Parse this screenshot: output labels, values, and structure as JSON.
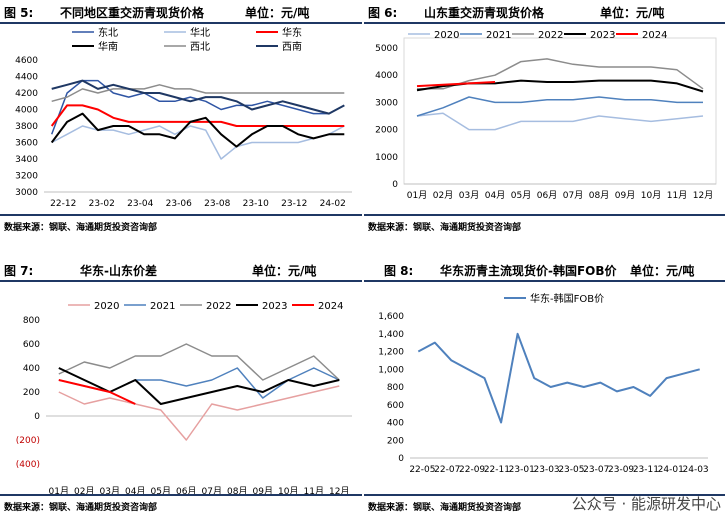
{
  "panels": [
    {
      "fig": "图 5:",
      "name": "不同地区重交沥青现货价格",
      "unit": "单位：元/吨",
      "source": "数据来源：钢联、海通期货投资咨询部"
    },
    {
      "fig": "图 6:",
      "name": "山东重交沥青现货价格",
      "unit": "单位：元/吨",
      "source": "数据来源：钢联、海通期货投资咨询部"
    },
    {
      "fig": "图 7:",
      "name": "华东-山东价差",
      "unit": "单位：元/吨",
      "source": "数据来源：钢联、海通期货投资咨询部"
    },
    {
      "fig": "图 8:",
      "name": "华东沥青主流现货价-韩国FOB价",
      "unit": "单位：元/吨",
      "source": "数据来源：钢联、海通期货投资咨询部"
    }
  ],
  "watermark": "公众号 · 能源研发中心",
  "chart_data": [
    {
      "type": "line",
      "xlabels": [
        "22-12",
        "23-02",
        "23-04",
        "23-06",
        "23-08",
        "23-10",
        "23-12",
        "24-02"
      ],
      "ylim": [
        3000,
        4600
      ],
      "yticks": [
        "3000",
        "3200",
        "3400",
        "3600",
        "3800",
        "4000",
        "4200",
        "4400",
        "4600"
      ],
      "series": [
        {
          "name": "东北",
          "color": "#2f55a4",
          "width": 1.5,
          "values": [
            3700,
            4200,
            4350,
            4350,
            4200,
            4150,
            4200,
            4100,
            4100,
            4150,
            4100,
            4000,
            4050,
            4050,
            4100,
            4050,
            4000,
            3950,
            3950,
            4050
          ]
        },
        {
          "name": "华北",
          "color": "#a6bde0",
          "width": 1.5,
          "values": [
            3600,
            3700,
            3800,
            3750,
            3750,
            3700,
            3750,
            3800,
            3700,
            3800,
            3750,
            3400,
            3550,
            3600,
            3600,
            3600,
            3600,
            3650,
            3700,
            3800
          ]
        },
        {
          "name": "华东",
          "color": "#ff0000",
          "width": 2,
          "values": [
            3800,
            4050,
            4050,
            4000,
            3900,
            3850,
            3850,
            3850,
            3850,
            3850,
            3850,
            3850,
            3800,
            3800,
            3800,
            3800,
            3800,
            3800,
            3800,
            3800
          ]
        },
        {
          "name": "华南",
          "color": "#000000",
          "width": 2,
          "values": [
            3600,
            3850,
            3950,
            3750,
            3800,
            3800,
            3700,
            3700,
            3650,
            3850,
            3900,
            3700,
            3550,
            3700,
            3800,
            3800,
            3700,
            3650,
            3700,
            3700
          ]
        },
        {
          "name": "西北",
          "color": "#8c8c8c",
          "width": 1.5,
          "values": [
            4100,
            4150,
            4250,
            4200,
            4250,
            4250,
            4250,
            4300,
            4250,
            4250,
            4200,
            4200,
            4200,
            4200,
            4200,
            4200,
            4200,
            4200,
            4200,
            4200
          ]
        },
        {
          "name": "西南",
          "color": "#1f3864",
          "width": 2,
          "values": [
            4250,
            4300,
            4350,
            4250,
            4300,
            4250,
            4200,
            4200,
            4150,
            4100,
            4150,
            4150,
            4100,
            4000,
            4050,
            4100,
            4050,
            4000,
            3950,
            4050
          ]
        }
      ]
    },
    {
      "type": "line",
      "xlabels": [
        "01月",
        "02月",
        "03月",
        "04月",
        "05月",
        "06月",
        "07月",
        "08月",
        "09月",
        "10月",
        "11月",
        "12月"
      ],
      "ylim": [
        0,
        5000
      ],
      "yticks": [
        "0",
        "1000",
        "2000",
        "3000",
        "4000",
        "5000"
      ],
      "series": [
        {
          "name": "2020",
          "color": "#a6bde0",
          "width": 1.5,
          "values": [
            2500,
            2600,
            2000,
            2000,
            2300,
            2300,
            2300,
            2500,
            2400,
            2300,
            2400,
            2500
          ]
        },
        {
          "name": "2021",
          "color": "#4f81bd",
          "width": 1.5,
          "values": [
            2500,
            2800,
            3200,
            3000,
            3000,
            3100,
            3100,
            3200,
            3100,
            3100,
            3000,
            3000
          ]
        },
        {
          "name": "2022",
          "color": "#8c8c8c",
          "width": 1.5,
          "values": [
            3500,
            3500,
            3800,
            4000,
            4500,
            4600,
            4400,
            4300,
            4300,
            4300,
            4200,
            3500
          ]
        },
        {
          "name": "2023",
          "color": "#000000",
          "width": 2,
          "values": [
            3450,
            3600,
            3700,
            3700,
            3800,
            3750,
            3750,
            3800,
            3800,
            3800,
            3700,
            3400
          ]
        },
        {
          "name": "2024",
          "color": "#ff0000",
          "width": 2,
          "values": [
            3600,
            3650,
            3700,
            3750,
            null,
            null,
            null,
            null,
            null,
            null,
            null,
            null
          ]
        }
      ]
    },
    {
      "type": "line",
      "xlabels": [
        "01月",
        "02月",
        "03月",
        "04月",
        "05月",
        "06月",
        "07月",
        "08月",
        "09月",
        "10月",
        "11月",
        "12月"
      ],
      "ylim": [
        -400,
        800
      ],
      "yticks": [
        "(400)",
        "(200)",
        "0",
        "200",
        "400",
        "600",
        "800"
      ],
      "series": [
        {
          "name": "2020",
          "color": "#e6a0a0",
          "width": 1.5,
          "values": [
            200,
            100,
            150,
            100,
            50,
            -200,
            100,
            50,
            100,
            150,
            200,
            250
          ]
        },
        {
          "name": "2021",
          "color": "#4f81bd",
          "width": 1.5,
          "values": [
            300,
            250,
            200,
            300,
            300,
            250,
            300,
            400,
            150,
            300,
            400,
            300
          ]
        },
        {
          "name": "2022",
          "color": "#8c8c8c",
          "width": 1.5,
          "values": [
            350,
            450,
            400,
            500,
            500,
            600,
            500,
            500,
            300,
            400,
            500,
            300
          ]
        },
        {
          "name": "2023",
          "color": "#000000",
          "width": 2,
          "values": [
            400,
            300,
            200,
            300,
            100,
            150,
            200,
            250,
            200,
            300,
            250,
            300
          ]
        },
        {
          "name": "2024",
          "color": "#ff0000",
          "width": 2,
          "values": [
            300,
            250,
            200,
            100,
            null,
            null,
            null,
            null,
            null,
            null,
            null,
            null
          ]
        }
      ]
    },
    {
      "type": "line",
      "xlabels": [
        "22-05",
        "22-07",
        "22-09",
        "22-11",
        "23-01",
        "23-03",
        "23-05",
        "23-07",
        "23-09",
        "23-11",
        "24-01",
        "24-03"
      ],
      "ylim": [
        0,
        1600
      ],
      "yticks": [
        "0",
        "200",
        "400",
        "600",
        "800",
        "1,000",
        "1,200",
        "1,400",
        "1,600"
      ],
      "series": [
        {
          "name": "华东-韩国FOB价",
          "color": "#4f81bd",
          "width": 2,
          "values": [
            1200,
            1300,
            1100,
            1000,
            900,
            400,
            1400,
            900,
            800,
            850,
            800,
            850,
            750,
            800,
            700,
            900,
            950,
            1000
          ]
        }
      ]
    }
  ]
}
